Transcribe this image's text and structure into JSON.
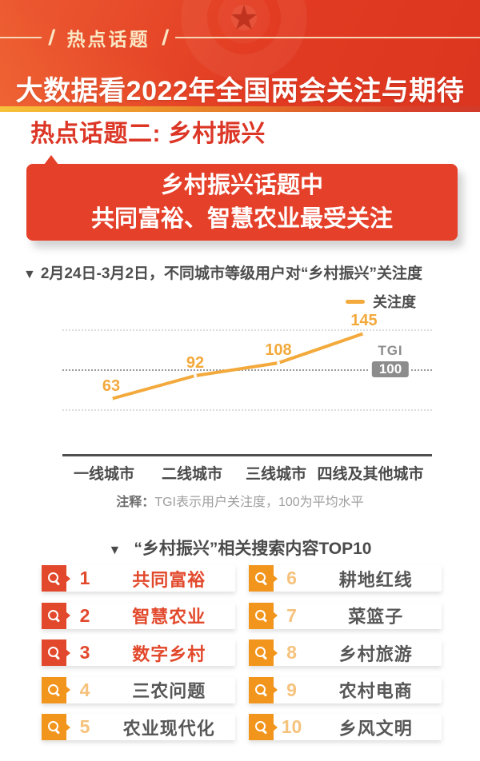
{
  "header": {
    "tag_label": "热点话题",
    "slash": "/",
    "title": "大数据看2022年全国两会关注与期待",
    "bg_color": "#E23B22",
    "tag_color": "#F9E7C5"
  },
  "section": {
    "heading": "热点话题二: 乡村振兴",
    "heading_color": "#DC3626",
    "bubble_line1": "乡村振兴话题中",
    "bubble_line2": "共同富裕、智慧农业最受关注",
    "bubble_color": "#E5402A"
  },
  "chart": {
    "title_marker": "▼",
    "title_text": "2月24日-3月2日，不同城市等级用户对“乡村振兴”关注度",
    "legend_label": "关注度",
    "tgi_label": "TGI",
    "tgi_value": "100",
    "note_prefix": "注释：",
    "note_text": "TGI表示用户关注度，100为平均水平",
    "line_color": "#F3A93B"
  },
  "chart_data": {
    "type": "line",
    "title": "2月24日-3月2日，不同城市等级用户对“乡村振兴”关注度",
    "categories": [
      "一线城市",
      "二线城市",
      "三线城市",
      "四线及其他城市"
    ],
    "series": [
      {
        "name": "关注度",
        "values": [
          63,
          92,
          108,
          145
        ]
      }
    ],
    "baseline": {
      "label": "TGI",
      "value": 100,
      "style": "dark-dotted"
    },
    "gridlines": [
      150,
      50
    ],
    "ylim": [
      0,
      170
    ],
    "grid": "dotted",
    "legend_position": "top-right",
    "note": "注释：TGI表示用户关注度，100为平均水平"
  },
  "top10": {
    "heading_marker": "▼",
    "heading": "“乡村振兴”相关搜索内容TOP10",
    "items": [
      {
        "rank": "1",
        "label": "共同富裕"
      },
      {
        "rank": "2",
        "label": "智慧农业"
      },
      {
        "rank": "3",
        "label": "数字乡村"
      },
      {
        "rank": "4",
        "label": "三农问题"
      },
      {
        "rank": "5",
        "label": "农业现代化"
      },
      {
        "rank": "6",
        "label": "耕地红线"
      },
      {
        "rank": "7",
        "label": "菜篮子"
      },
      {
        "rank": "8",
        "label": "乡村旅游"
      },
      {
        "rank": "9",
        "label": "农村电商"
      },
      {
        "rank": "10",
        "label": "乡风文明"
      }
    ],
    "badge_color_top3": "#E2492C",
    "badge_color_rest": "#F2951D"
  }
}
